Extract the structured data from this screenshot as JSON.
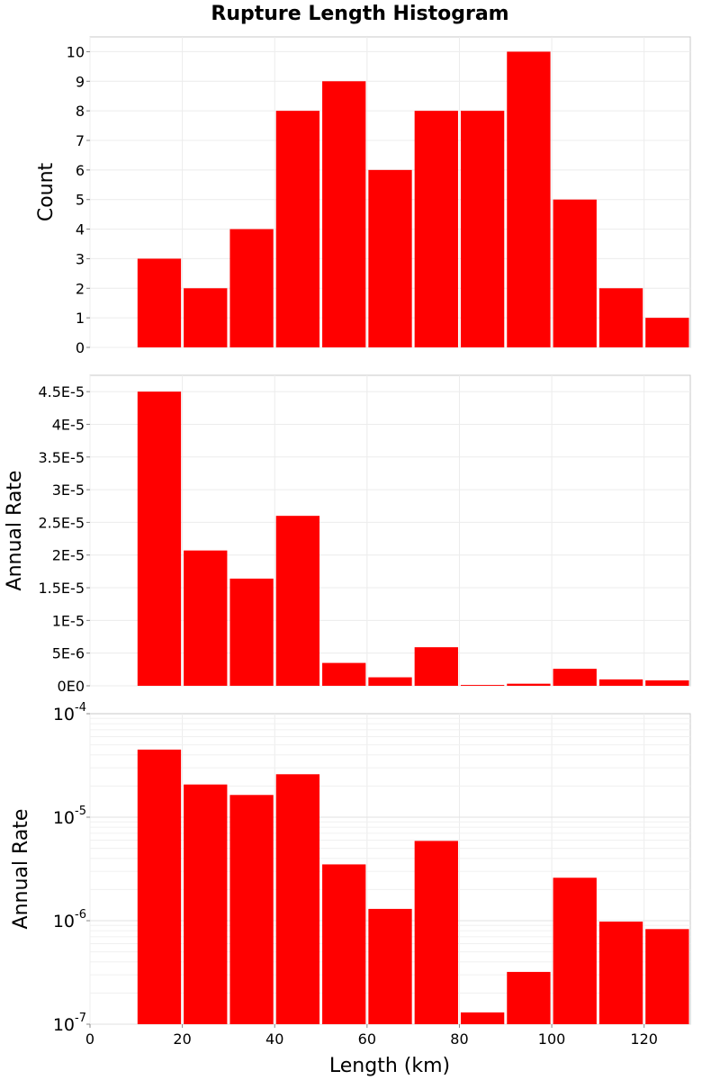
{
  "chart_data": {
    "title": "Rupture Length Histogram",
    "type": "bar",
    "x": {
      "label": "Length (km)",
      "range": [
        0,
        130
      ],
      "ticks": [
        "0",
        "20",
        "40",
        "60",
        "80",
        "100",
        "120"
      ],
      "bin_centers": [
        15,
        25,
        35,
        45,
        55,
        65,
        75,
        85,
        95,
        105,
        115,
        125
      ],
      "bin_width": 10
    },
    "bar_color": "#ff0000",
    "grid": true,
    "panels": [
      {
        "type": "bar",
        "ylabel": "Count",
        "scale": "linear",
        "ylim": [
          0,
          10.5
        ],
        "yticks": [
          0,
          1,
          2,
          3,
          4,
          5,
          6,
          7,
          8,
          9,
          10
        ],
        "ytick_labels": [
          "0",
          "1",
          "2",
          "3",
          "4",
          "5",
          "6",
          "7",
          "8",
          "9",
          "10"
        ],
        "values": [
          3,
          2,
          4,
          8,
          9,
          6,
          8,
          8,
          10,
          5,
          2,
          1
        ]
      },
      {
        "type": "bar",
        "ylabel": "Annual Rate",
        "scale": "linear",
        "ylim": [
          0,
          4.75e-05
        ],
        "yticks": [
          0,
          5e-06,
          1e-05,
          1.5e-05,
          2e-05,
          2.5e-05,
          3e-05,
          3.5e-05,
          4e-05,
          4.5e-05
        ],
        "ytick_labels": [
          "0E0",
          "5E-6",
          "1E-5",
          "1.5E-5",
          "2E-5",
          "2.5E-5",
          "3E-5",
          "3.5E-5",
          "4E-5",
          "4.5E-5"
        ],
        "values": [
          4.5e-05,
          2.07e-05,
          1.64e-05,
          2.6e-05,
          3.5e-06,
          1.3e-06,
          5.9e-06,
          1.3e-07,
          3.2e-07,
          2.6e-06,
          9.8e-07,
          8.3e-07
        ]
      },
      {
        "type": "bar",
        "ylabel": "Annual Rate",
        "scale": "log",
        "ylim": [
          1e-07,
          0.0001
        ],
        "yticks": [
          1e-07,
          1e-06,
          1e-05,
          0.0001
        ],
        "ytick_labels": [
          {
            "base": "10",
            "exp": "-7"
          },
          {
            "base": "10",
            "exp": "-6"
          },
          {
            "base": "10",
            "exp": "-5"
          },
          {
            "base": "10",
            "exp": "-4"
          }
        ],
        "values": [
          4.5e-05,
          2.07e-05,
          1.64e-05,
          2.6e-05,
          3.5e-06,
          1.3e-06,
          5.9e-06,
          1.3e-07,
          3.2e-07,
          2.6e-06,
          9.8e-07,
          8.3e-07
        ]
      }
    ]
  }
}
